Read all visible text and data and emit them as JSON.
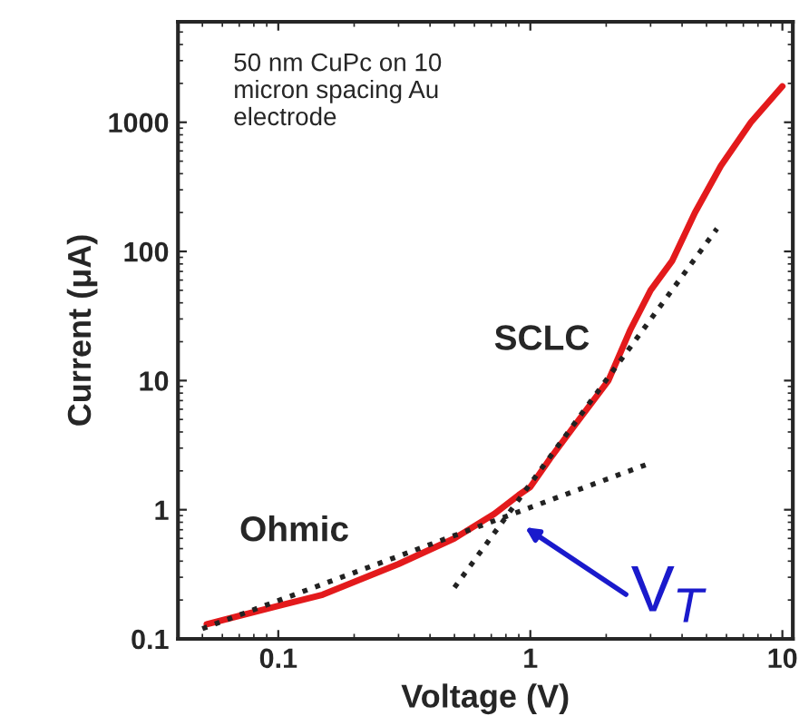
{
  "chart_data": {
    "type": "line",
    "xlabel": "Voltage (V)",
    "ylabel": "Current (μA)",
    "log": "xy",
    "xlim": [
      0.04,
      11
    ],
    "ylim": [
      0.1,
      6000
    ],
    "xticks": [
      0.1,
      1,
      10
    ],
    "yticks": [
      0.1,
      1,
      10,
      100,
      1000
    ],
    "grid": false,
    "legend": false,
    "series": [
      {
        "color": "#e31a1c",
        "line_style": "solid",
        "x": [
          0.052,
          0.1,
          0.15,
          0.3,
          0.5,
          0.72,
          0.9,
          1.0,
          1.2,
          1.5,
          2.04,
          2.5,
          3.0,
          3.66,
          4.5,
          5.7,
          7.5,
          10
        ],
        "values": [
          0.13,
          0.18,
          0.22,
          0.38,
          0.6,
          0.93,
          1.3,
          1.5,
          2.5,
          4.5,
          10,
          25,
          50,
          85,
          200,
          460,
          1000,
          1900
        ]
      },
      {
        "color": "#222222",
        "line_style": "dotted",
        "x": [
          0.05,
          3
        ],
        "values": [
          0.12,
          2.3
        ]
      },
      {
        "color": "#222222",
        "line_style": "dotted",
        "x": [
          0.5,
          5.5
        ],
        "values": [
          0.25,
          150
        ]
      }
    ],
    "annotations": [
      "50 nm CuPc on 10\nmicron spacing Au\nelectrode",
      "Ohmic",
      "SCLC",
      {
        "text": "V$_{T}$",
        "x": 0.85,
        "y": 0.85
      }
    ]
  }
}
